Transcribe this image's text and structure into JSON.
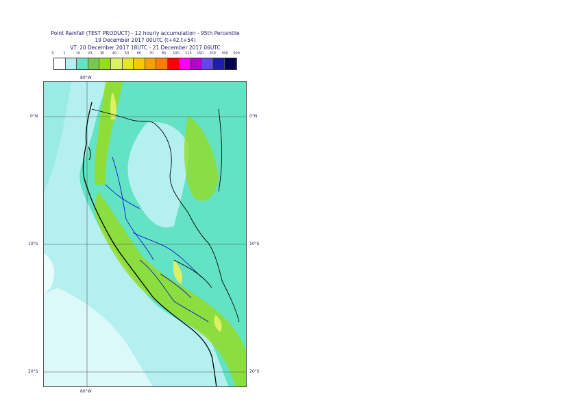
{
  "header": {
    "line1": "Point Rainfall (TEST PRODUCT) - 12 hourly accumulation - 95th Percentile",
    "line2": "19 December 2017 00UTC (t+42,t+54)",
    "line3": "VT: 20 December 2017 18UTC - 21 December 2017 06UTC"
  },
  "legend": {
    "thresholds": [
      "0",
      "1",
      "10",
      "20",
      "30",
      "40",
      "50",
      "60",
      "70",
      "80",
      "100",
      "125",
      "150",
      "200",
      "300",
      "500"
    ],
    "colors": [
      "#ffffff",
      "#b4f0f0",
      "#64e2c4",
      "#78c850",
      "#96dc1e",
      "#dcf064",
      "#e6e628",
      "#f5c800",
      "#f5a000",
      "#ff7a00",
      "#ff0000",
      "#ff00ff",
      "#b400c8",
      "#6446f0",
      "#1e1eaa",
      "#000050"
    ]
  },
  "map": {
    "lat_labels": [
      "0°N",
      "10°S",
      "20°S"
    ],
    "lon_label_top": "80°W",
    "lon_label_bottom": "80°W",
    "colors": {
      "ocean_light": "#b4f0f0",
      "land_teal": "#64e2c4",
      "green": "#96dc1e",
      "yellow": "#dcf064",
      "coast": "#000000",
      "border_blue": "#0000cc"
    }
  }
}
